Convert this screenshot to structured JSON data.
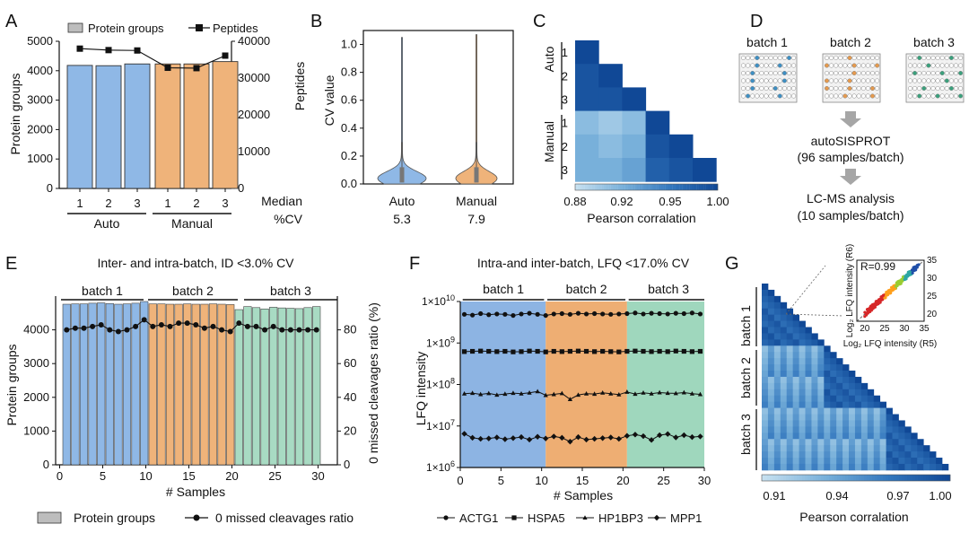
{
  "panels": {
    "A": {
      "letter": "A",
      "legend": {
        "bars": "Protein groups",
        "line": "Peptides"
      },
      "ylabel": "Protein groups",
      "y2label": "Peptides",
      "yticks": [
        "0",
        "1000",
        "2000",
        "3000",
        "4000",
        "5000"
      ],
      "y2ticks": [
        "0",
        "10000",
        "20000",
        "30000",
        "40000"
      ],
      "xticks": [
        "1",
        "2",
        "3",
        "1",
        "2",
        "3"
      ],
      "groups": [
        "Auto",
        "Manual"
      ]
    },
    "B": {
      "letter": "B",
      "ylabel": "CV value",
      "yticks": [
        "0.0",
        "0.2",
        "0.4",
        "0.6",
        "0.8",
        "1.0"
      ],
      "categories": [
        "Auto",
        "Manual"
      ],
      "median_label": "Median",
      "cv_label": "%CV",
      "medians": [
        "5.3",
        "7.9"
      ]
    },
    "C": {
      "letter": "C",
      "row_groups": [
        "Auto",
        "Manual"
      ],
      "row_ticks": [
        "1",
        "2",
        "3",
        "1",
        "2",
        "3"
      ],
      "colorbar_ticks": [
        "0.88",
        "0.92",
        "0.95",
        "1.00"
      ],
      "colorbar_label": "Pearson corralation"
    },
    "D": {
      "letter": "D",
      "batches": [
        "batch 1",
        "batch 2",
        "batch 3"
      ],
      "step1": "autoSISPROT",
      "step1_sub": "(96 samples/batch)",
      "step2": "LC-MS analysis",
      "step2_sub": "(10 samples/batch)"
    },
    "E": {
      "letter": "E",
      "title": "Inter- and intra-batch, ID <3.0% CV",
      "batches": [
        "batch 1",
        "batch 2",
        "batch 3"
      ],
      "ylabel": "Protein groups",
      "y2label": "0 missed cleavages ratio (%)",
      "xlabel": "# Samples",
      "yticks": [
        "0",
        "1000",
        "2000",
        "3000",
        "4000"
      ],
      "y2ticks": [
        "0",
        "20",
        "40",
        "60",
        "80"
      ],
      "xticks": [
        "0",
        "5",
        "10",
        "15",
        "20",
        "25",
        "30"
      ],
      "legend": {
        "bars": "Protein groups",
        "line": "0 missed cleavages ratio"
      }
    },
    "F": {
      "letter": "F",
      "title": "Intra-and inter-batch, LFQ <17.0% CV",
      "batches": [
        "batch 1",
        "batch 2",
        "batch 3"
      ],
      "ylabel": "LFQ intensity",
      "xlabel": "# Samples",
      "xticks": [
        "0",
        "5",
        "10",
        "15",
        "20",
        "25",
        "30"
      ],
      "yticks": [
        {
          "base": "1×10",
          "exp": "10"
        },
        {
          "base": "1×10",
          "exp": "9"
        },
        {
          "base": "1×10",
          "exp": "8"
        },
        {
          "base": "1×10",
          "exp": "7"
        },
        {
          "base": "1×10",
          "exp": "6"
        }
      ],
      "legend": [
        "ACTG1",
        "HSPA5",
        "HP1BP3",
        "MPP1"
      ]
    },
    "G": {
      "letter": "G",
      "batches": [
        "batch 1",
        "batch 2",
        "batch 3"
      ],
      "inset_r": "R=0.99",
      "inset_xlabel": "Log₂ LFQ intensity (R5)",
      "inset_ylabel": "Log₂ LFQ intensity (R6)",
      "inset_ticks": [
        "20",
        "25",
        "30",
        "35"
      ],
      "colorbar_ticks": [
        "0.91",
        "0.94",
        "0.97",
        "1.00"
      ],
      "colorbar_label": "Pearson corralation"
    }
  },
  "colors": {
    "auto": "#8fb8e6",
    "manual": "#efb37a",
    "batch1": "#8fb8e6",
    "batch2": "#efb37a",
    "batch3": "#a8dbc3",
    "bgF1": "#8db4e3",
    "bgF2": "#eeae73",
    "bgF3": "#9fd7bd"
  },
  "chart_data": [
    {
      "panel": "A",
      "type": "bar",
      "categories": [
        "Auto 1",
        "Auto 2",
        "Auto 3",
        "Manual 1",
        "Manual 2",
        "Manual 3"
      ],
      "series": [
        {
          "name": "Protein groups",
          "values": [
            4180,
            4170,
            4230,
            4230,
            4230,
            4310
          ]
        },
        {
          "name": "Peptides",
          "axis": "right",
          "values": [
            38000,
            37600,
            37500,
            32800,
            32700,
            36100
          ]
        }
      ],
      "ylim": [
        0,
        5000
      ],
      "y2lim": [
        0,
        40000
      ]
    },
    {
      "panel": "B",
      "type": "violin",
      "categories": [
        "Auto",
        "Manual"
      ],
      "medians": [
        0.053,
        0.079
      ],
      "ylim": [
        0,
        1.0
      ]
    },
    {
      "panel": "C",
      "type": "heatmap",
      "labels": [
        "Auto 1",
        "Auto 2",
        "Auto 3",
        "Manual 1",
        "Manual 2",
        "Manual 3"
      ],
      "matrix": [
        [
          1.0
        ],
        [
          0.99,
          1.0
        ],
        [
          0.99,
          0.99,
          1.0
        ],
        [
          0.91,
          0.9,
          0.91,
          1.0
        ],
        [
          0.92,
          0.91,
          0.92,
          0.99,
          1.0
        ],
        [
          0.92,
          0.92,
          0.93,
          0.98,
          0.99,
          1.0
        ]
      ],
      "scale": [
        0.88,
        1.0
      ]
    },
    {
      "panel": "E",
      "type": "bar",
      "x": [
        1,
        2,
        3,
        4,
        5,
        6,
        7,
        8,
        9,
        10,
        11,
        12,
        13,
        14,
        15,
        16,
        17,
        18,
        19,
        20,
        21,
        22,
        23,
        24,
        25,
        26,
        27,
        28,
        29,
        30
      ],
      "series": [
        {
          "name": "Protein groups",
          "values": [
            4760,
            4770,
            4770,
            4790,
            4800,
            4780,
            4760,
            4770,
            4790,
            4840,
            4770,
            4770,
            4760,
            4760,
            4770,
            4760,
            4760,
            4770,
            4760,
            4750,
            4600,
            4690,
            4660,
            4620,
            4670,
            4650,
            4640,
            4630,
            4660,
            4690
          ]
        },
        {
          "name": "0 missed cleavages ratio",
          "axis": "right",
          "values": [
            80,
            81,
            81,
            82,
            83,
            80,
            79,
            80,
            82,
            86,
            82,
            83,
            82,
            84,
            84,
            83,
            81,
            82,
            80,
            79,
            84,
            82,
            82,
            80,
            82,
            80,
            80,
            80,
            80,
            80
          ]
        }
      ],
      "ylim": [
        0,
        5000
      ],
      "y2lim": [
        0,
        100
      ]
    },
    {
      "panel": "F",
      "type": "line",
      "yscale": "log",
      "x": [
        1,
        2,
        3,
        4,
        5,
        6,
        7,
        8,
        9,
        10,
        11,
        12,
        13,
        14,
        15,
        16,
        17,
        18,
        19,
        20,
        21,
        22,
        23,
        24,
        25,
        26,
        27,
        28,
        29,
        30
      ],
      "series": [
        {
          "name": "ACTG1",
          "values": [
            4900000000.0,
            4700000000.0,
            5100000000.0,
            4800000000.0,
            5000000000.0,
            4900000000.0,
            4600000000.0,
            5000000000.0,
            5200000000.0,
            4900000000.0,
            4600000000.0,
            5000000000.0,
            5100000000.0,
            4900000000.0,
            5200000000.0,
            5000000000.0,
            5100000000.0,
            5000000000.0,
            4900000000.0,
            5000000000.0,
            5100000000.0,
            5300000000.0,
            5000000000.0,
            5200000000.0,
            5100000000.0,
            5000000000.0,
            5200000000.0,
            5100000000.0,
            5300000000.0,
            5000000000.0
          ]
        },
        {
          "name": "HSPA5",
          "values": [
            620000000.0,
            630000000.0,
            640000000.0,
            630000000.0,
            620000000.0,
            630000000.0,
            610000000.0,
            620000000.0,
            640000000.0,
            630000000.0,
            610000000.0,
            630000000.0,
            620000000.0,
            630000000.0,
            640000000.0,
            630000000.0,
            620000000.0,
            630000000.0,
            620000000.0,
            610000000.0,
            630000000.0,
            640000000.0,
            630000000.0,
            620000000.0,
            630000000.0,
            620000000.0,
            640000000.0,
            630000000.0,
            620000000.0,
            630000000.0
          ]
        },
        {
          "name": "HP1BP3",
          "values": [
            60000000.0,
            62000000.0,
            58000000.0,
            61000000.0,
            56000000.0,
            59000000.0,
            62000000.0,
            60000000.0,
            63000000.0,
            68000000.0,
            55000000.0,
            58000000.0,
            61000000.0,
            44000000.0,
            56000000.0,
            60000000.0,
            59000000.0,
            63000000.0,
            60000000.0,
            57000000.0,
            66000000.0,
            59000000.0,
            63000000.0,
            60000000.0,
            64000000.0,
            62000000.0,
            61000000.0,
            64000000.0,
            60000000.0,
            58000000.0
          ]
        },
        {
          "name": "MPP1",
          "values": [
            6500000.0,
            5200000.0,
            4900000.0,
            5000000.0,
            5300000.0,
            4800000.0,
            5100000.0,
            5400000.0,
            4700000.0,
            5500000.0,
            5000000.0,
            5600000.0,
            5200000.0,
            4200000.0,
            5400000.0,
            4700000.0,
            4900000.0,
            5100000.0,
            5300000.0,
            4900000.0,
            5800000.0,
            6200000.0,
            5700000.0,
            4600000.0,
            6000000.0,
            6400000.0,
            5300000.0,
            6000000.0,
            5400000.0,
            5600000.0
          ]
        }
      ],
      "ylim": [
        1000000.0,
        10000000000.0
      ]
    },
    {
      "panel": "G",
      "type": "heatmap",
      "size": 30,
      "scale": [
        0.91,
        1.0
      ],
      "inset": {
        "type": "scatter",
        "r": 0.99,
        "xlim": [
          18,
          35
        ],
        "ylim": [
          18,
          35
        ]
      }
    }
  ]
}
